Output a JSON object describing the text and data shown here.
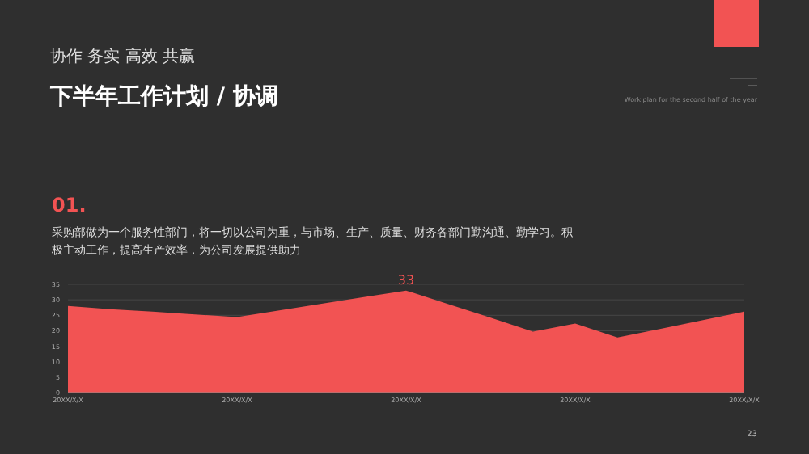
{
  "chart_data": {
    "type": "area",
    "title": "下半年工作计划 / 协调",
    "subtitle": "协作 务实 高效 共赢",
    "annotations": [
      "Work plan for the second half of the year",
      "01.",
      "采购部做为一个服务性部门，将一切以公司为重，与市场、生产、质量、财务各部门勤沟通、勤学习。积极主动工作，提高生产效率，为公司发展提供助力",
      "23"
    ],
    "categories": [
      "20XX/X/X",
      null,
      null,
      null,
      "20XX/X/X",
      null,
      null,
      null,
      "20XX/X/X",
      null,
      null,
      null,
      "20XX/X/X",
      null,
      null,
      null,
      "20XX/X/X"
    ],
    "series": [
      {
        "color": "#f25353",
        "values": [
          28,
          27,
          26.2,
          25.3,
          24.4,
          26.6,
          28.7,
          30.9,
          33,
          28.6,
          24.2,
          19.7,
          22.3,
          17.8,
          20.6,
          23.4,
          26.2
        ],
        "value_labels": [
          null,
          null,
          null,
          null,
          null,
          null,
          null,
          null,
          "33",
          null,
          null,
          null,
          null,
          null,
          null,
          null,
          null
        ]
      }
    ],
    "ylim": [
      0,
      35
    ],
    "yticks": [
      0,
      5,
      10,
      15,
      20,
      25,
      30,
      35
    ],
    "grid": "y"
  }
}
